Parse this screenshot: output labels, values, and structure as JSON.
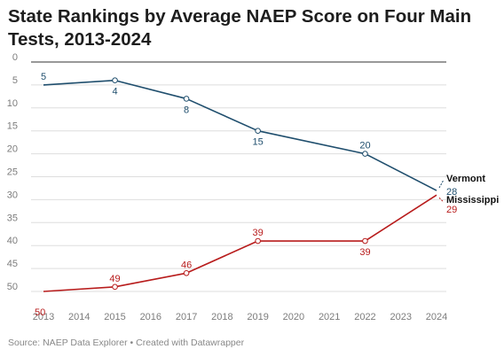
{
  "title": "State Rankings by Average NAEP Score on Four Main Tests, 2013-2024",
  "source": "Source: NAEP Data Explorer • Created with Datawrapper",
  "colors": {
    "vermont": "#1f4e6d",
    "mississippi": "#b81c1c",
    "grid": "#dedede",
    "zero_line": "#333333"
  },
  "chart_data": {
    "type": "line",
    "title": "State Rankings by Average NAEP Score on Four Main Tests, 2013-2024",
    "xlabel": "",
    "ylabel": "",
    "x_ticks": [
      2013,
      2014,
      2015,
      2016,
      2017,
      2018,
      2019,
      2020,
      2021,
      2022,
      2023,
      2024
    ],
    "y_ticks": [
      0,
      5,
      10,
      15,
      20,
      25,
      30,
      35,
      40,
      45,
      50
    ],
    "xlim": [
      2013,
      2024
    ],
    "ylim": [
      0,
      50
    ],
    "y_inverted": true,
    "grid": true,
    "series": [
      {
        "name": "Vermont",
        "color": "#1f4e6d",
        "points": [
          [
            2013,
            5
          ],
          [
            2015,
            4
          ],
          [
            2017,
            8
          ],
          [
            2019,
            15
          ],
          [
            2022,
            20
          ],
          [
            2024,
            28
          ]
        ],
        "labels": [
          "5",
          "4",
          "8",
          "15",
          "20",
          "28"
        ]
      },
      {
        "name": "Mississippi",
        "color": "#b81c1c",
        "points": [
          [
            2013,
            50
          ],
          [
            2015,
            49
          ],
          [
            2017,
            46
          ],
          [
            2019,
            39
          ],
          [
            2022,
            39
          ],
          [
            2024,
            29
          ]
        ],
        "labels": [
          "50",
          "49",
          "46",
          "39",
          "39",
          "29"
        ]
      }
    ]
  }
}
